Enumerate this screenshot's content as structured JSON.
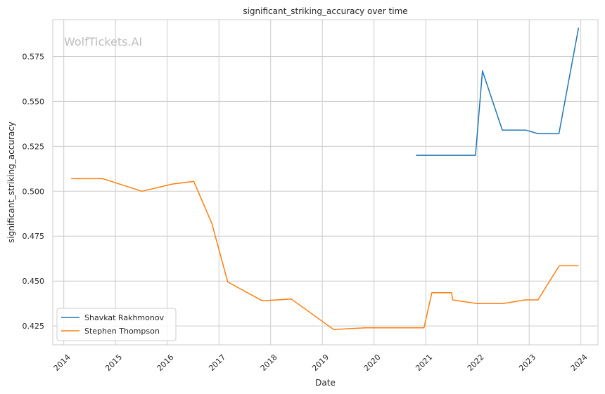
{
  "chart_data": {
    "type": "line",
    "title": "significant_striking_accuracy over time",
    "xlabel": "Date",
    "ylabel": "significant_striking_accuracy",
    "watermark": "WolfTickets.AI",
    "xlim": [
      "2013-10-15",
      "2024-05-01"
    ],
    "ylim": [
      0.4145,
      0.5955
    ],
    "x_ticks": [
      "2014",
      "2015",
      "2016",
      "2017",
      "2018",
      "2019",
      "2020",
      "2021",
      "2022",
      "2023",
      "2024"
    ],
    "y_ticks": [
      "0.425",
      "0.450",
      "0.475",
      "0.500",
      "0.525",
      "0.550",
      "0.575"
    ],
    "grid": true,
    "legend_position": "lower-left",
    "series": [
      {
        "name": "Shavkat Rakhmonov",
        "color": "#1f77b4",
        "points": [
          [
            "2020-10-24",
            0.52
          ],
          [
            "2021-12-18",
            0.52
          ],
          [
            "2022-02-05",
            0.567
          ],
          [
            "2022-06-25",
            0.534
          ],
          [
            "2022-12-10",
            0.534
          ],
          [
            "2023-03-05",
            0.532
          ],
          [
            "2023-07-30",
            0.532
          ],
          [
            "2023-12-16",
            0.591
          ]
        ]
      },
      {
        "name": "Stephen Thompson",
        "color": "#ff7f0e",
        "points": [
          [
            "2014-02-22",
            0.507
          ],
          [
            "2014-10-04",
            0.507
          ],
          [
            "2015-07-06",
            0.5
          ],
          [
            "2016-02-06",
            0.504
          ],
          [
            "2016-07-07",
            0.5055
          ],
          [
            "2016-11-12",
            0.482
          ],
          [
            "2017-03-04",
            0.4495
          ],
          [
            "2017-11-04",
            0.439
          ],
          [
            "2018-05-27",
            0.44
          ],
          [
            "2019-03-23",
            0.423
          ],
          [
            "2019-11-02",
            0.424
          ],
          [
            "2020-12-19",
            0.424
          ],
          [
            "2021-02-13",
            0.4435
          ],
          [
            "2021-07-02",
            0.4435
          ],
          [
            "2021-07-10",
            0.4395
          ],
          [
            "2021-12-30",
            0.4375
          ],
          [
            "2022-06-30",
            0.4375
          ],
          [
            "2022-12-03",
            0.4395
          ],
          [
            "2023-03-04",
            0.4395
          ],
          [
            "2023-08-01",
            0.4585
          ],
          [
            "2023-12-16",
            0.4585
          ]
        ]
      }
    ]
  }
}
